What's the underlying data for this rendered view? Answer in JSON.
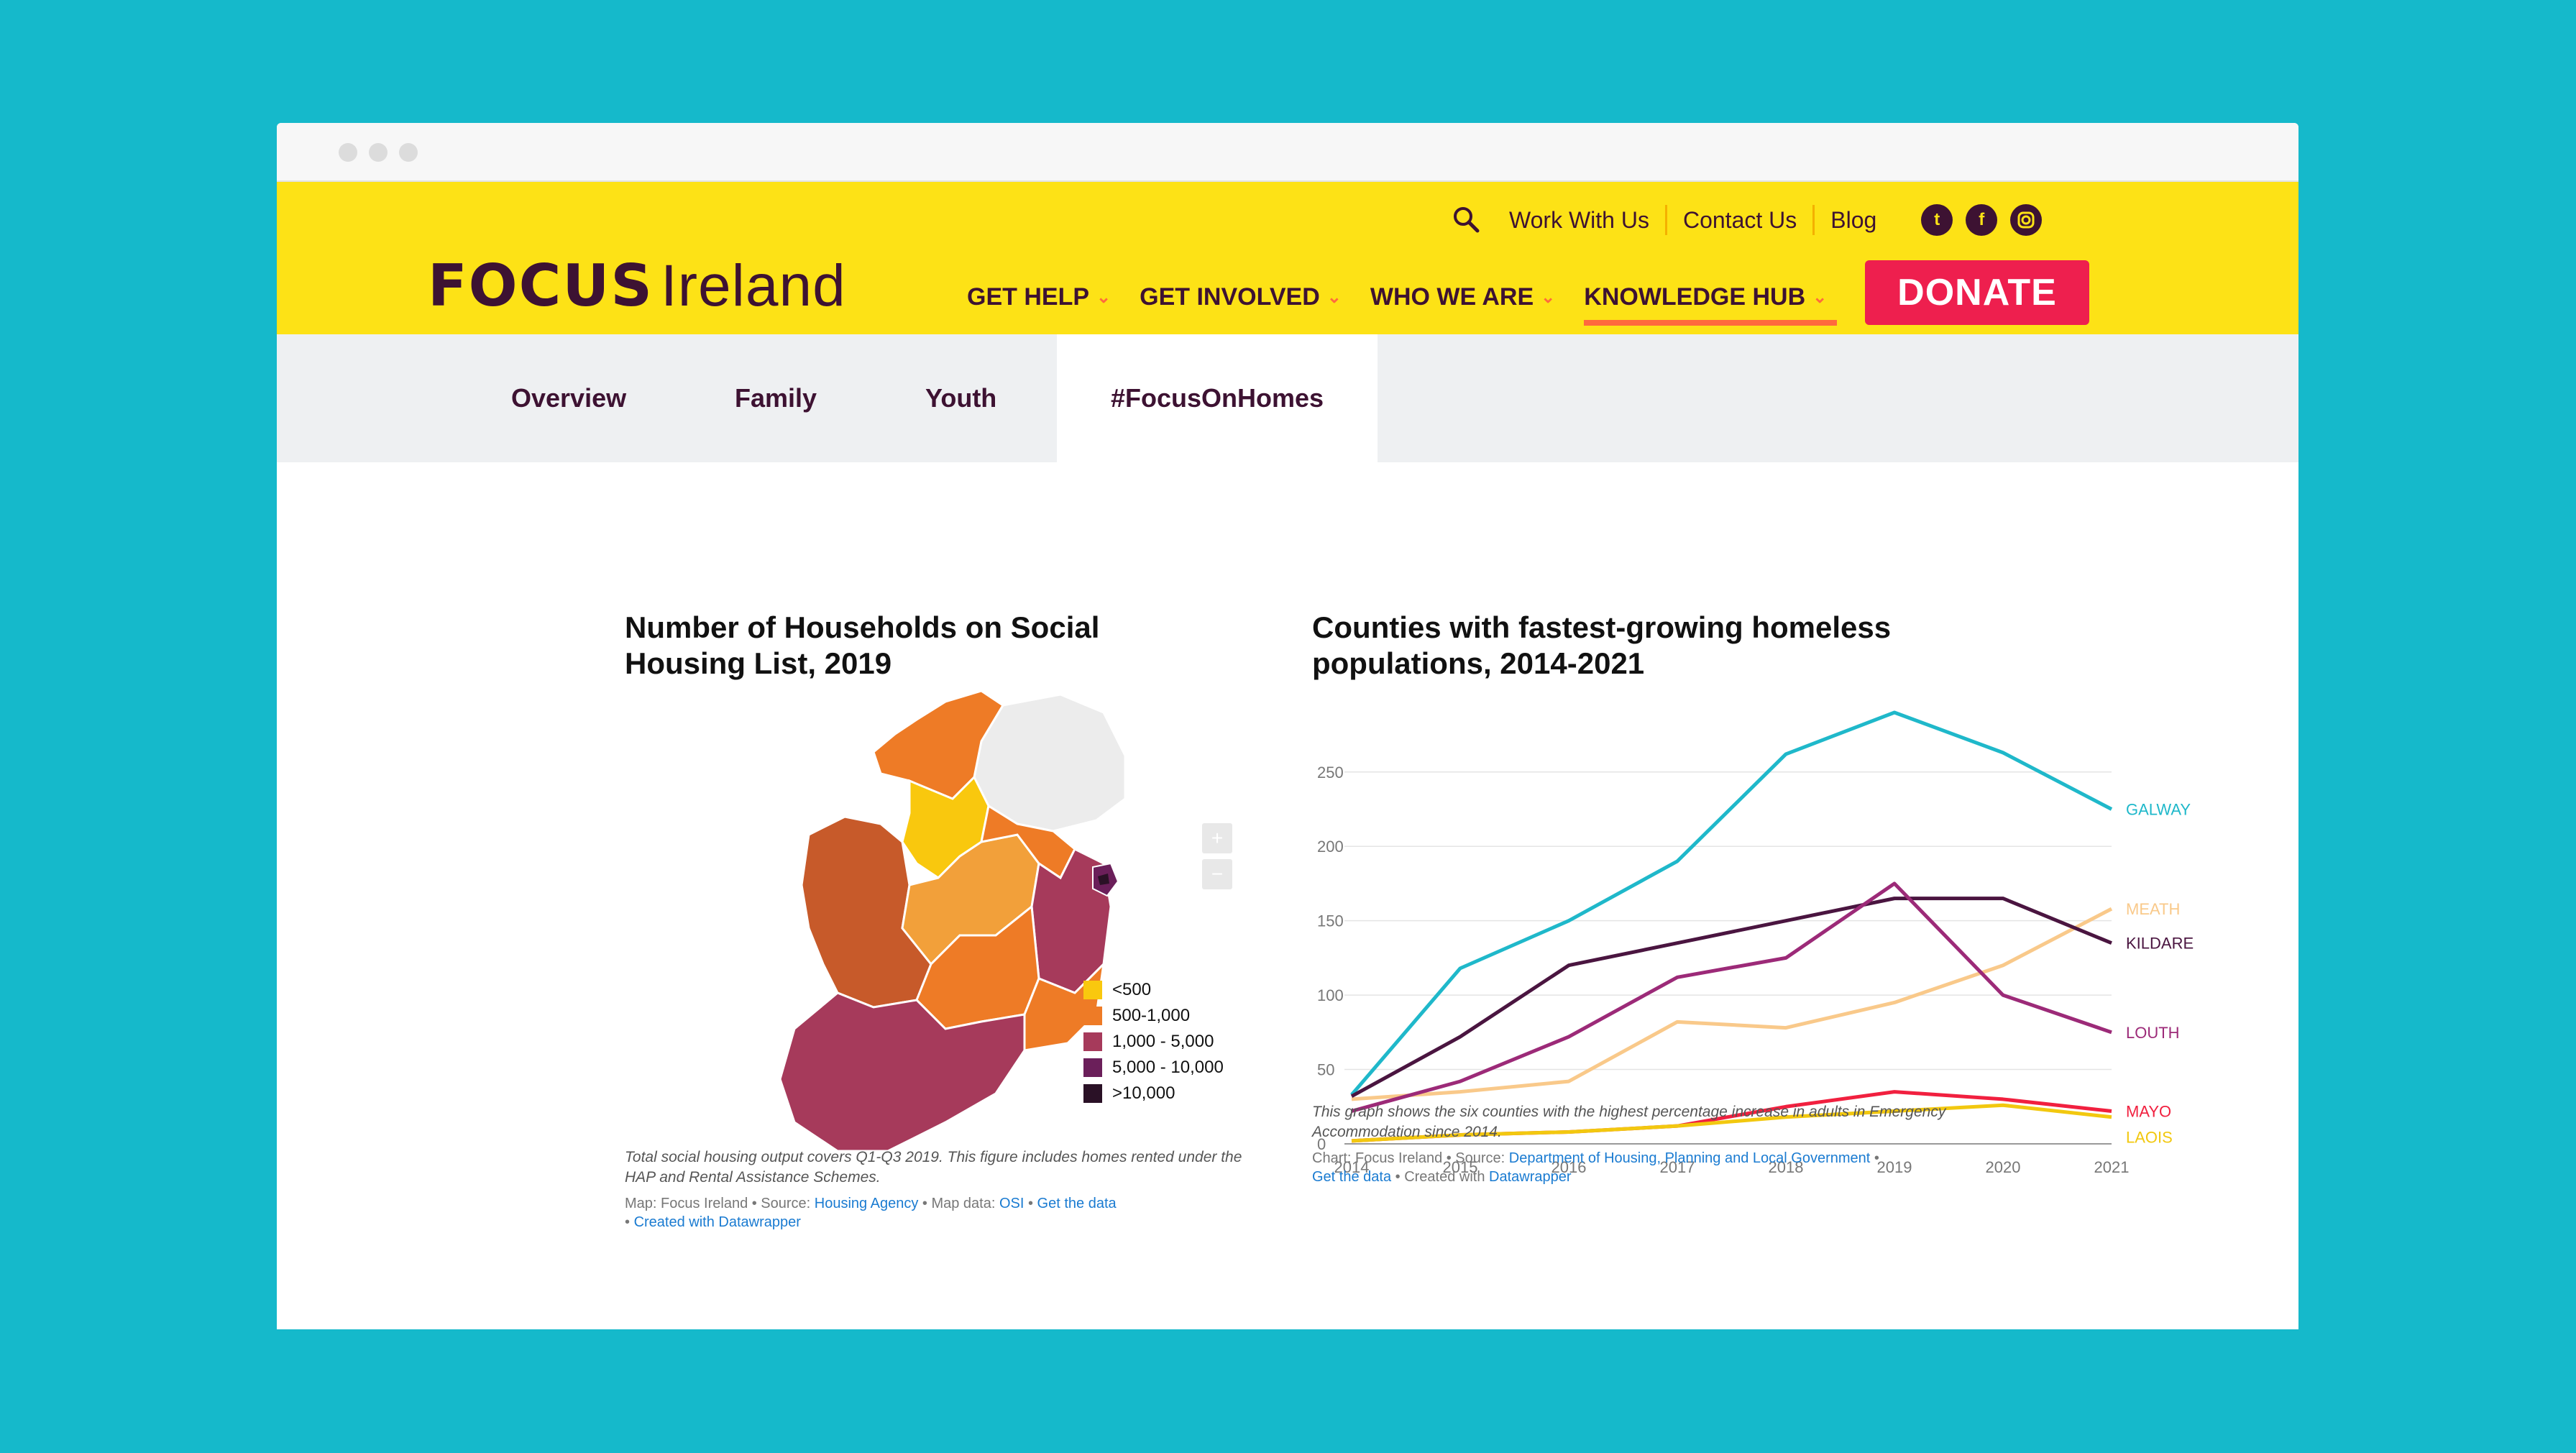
{
  "header": {
    "logo_bold": "FOCUS",
    "logo_light": "Ireland",
    "toplinks": [
      "Work With Us",
      "Contact Us",
      "Blog"
    ],
    "social_icons": [
      "twitter-icon",
      "facebook-icon",
      "instagram-icon"
    ],
    "nav": [
      "GET HELP",
      "GET INVOLVED",
      "WHO WE ARE",
      "KNOWLEDGE HUB"
    ],
    "donate_label": "DONATE"
  },
  "subnav": {
    "tabs": [
      "Overview",
      "Family",
      "Youth",
      "#FocusOnHomes"
    ],
    "active": "#FocusOnHomes"
  },
  "map_chart": {
    "title": "Number of Households on Social Housing List, 2019",
    "zoom_in": "+",
    "zoom_out": "−",
    "legend": [
      {
        "label": "<500",
        "color": "#f9c80e"
      },
      {
        "label": "500-1,000",
        "color": "#ee7b26"
      },
      {
        "label": "1,000 - 5,000",
        "color": "#a63a5b"
      },
      {
        "label": "5,000 - 10,000",
        "color": "#6b1f5a"
      },
      {
        "label": ">10,000",
        "color": "#2a1126"
      }
    ],
    "caption": "Total social housing output covers Q1-Q3 2019. This figure includes homes rented under the HAP and Rental Assistance Schemes.",
    "credit_prefix": "Map: Focus Ireland • Source: ",
    "source_link": "Housing Agency",
    "credit_mid": " • Map data: ",
    "mapdata_link": "OSI",
    "credit_sep": " • ",
    "getdata_link": "Get the data",
    "created_prefix": "• ",
    "created_link": "Created with Datawrapper"
  },
  "line_chart": {
    "caption": "This graph shows the six counties with the highest percentage increase in adults in Emergency Accommodation since 2014.",
    "credit_prefix": "Chart: Focus Ireland • Source: ",
    "source_link": "Department of Housing, Planning and Local Government",
    "credit_sep": " •",
    "getdata_link": "Get the data",
    "created_text": " • Created with ",
    "created_link": "Datawrapper"
  },
  "chart_data": {
    "type": "line",
    "title": "Counties with fastest-growing homeless populations, 2014-2021",
    "x": [
      2014,
      2015,
      2016,
      2017,
      2018,
      2019,
      2020,
      2021
    ],
    "yticks": [
      0,
      50,
      100,
      150,
      200,
      250
    ],
    "ylim": [
      0,
      290
    ],
    "grid": true,
    "legend": "end-of-line labels",
    "series": [
      {
        "name": "GALWAY",
        "color": "#1fb8ca",
        "values": [
          33,
          118,
          150,
          190,
          262,
          290,
          263,
          225
        ]
      },
      {
        "name": "MEATH",
        "color": "#f9c98a",
        "values": [
          30,
          35,
          42,
          82,
          78,
          95,
          120,
          158
        ]
      },
      {
        "name": "KILDARE",
        "color": "#4a1540",
        "values": [
          32,
          72,
          120,
          135,
          150,
          165,
          165,
          135
        ]
      },
      {
        "name": "LOUTH",
        "color": "#9c2a78",
        "values": [
          22,
          42,
          72,
          112,
          125,
          175,
          100,
          75
        ]
      },
      {
        "name": "MAYO",
        "color": "#f1203f",
        "values": [
          2,
          6,
          8,
          12,
          25,
          35,
          30,
          22
        ]
      },
      {
        "name": "LAOIS",
        "color": "#f2c80f",
        "values": [
          2,
          6,
          8,
          12,
          18,
          22,
          26,
          18
        ]
      }
    ]
  }
}
